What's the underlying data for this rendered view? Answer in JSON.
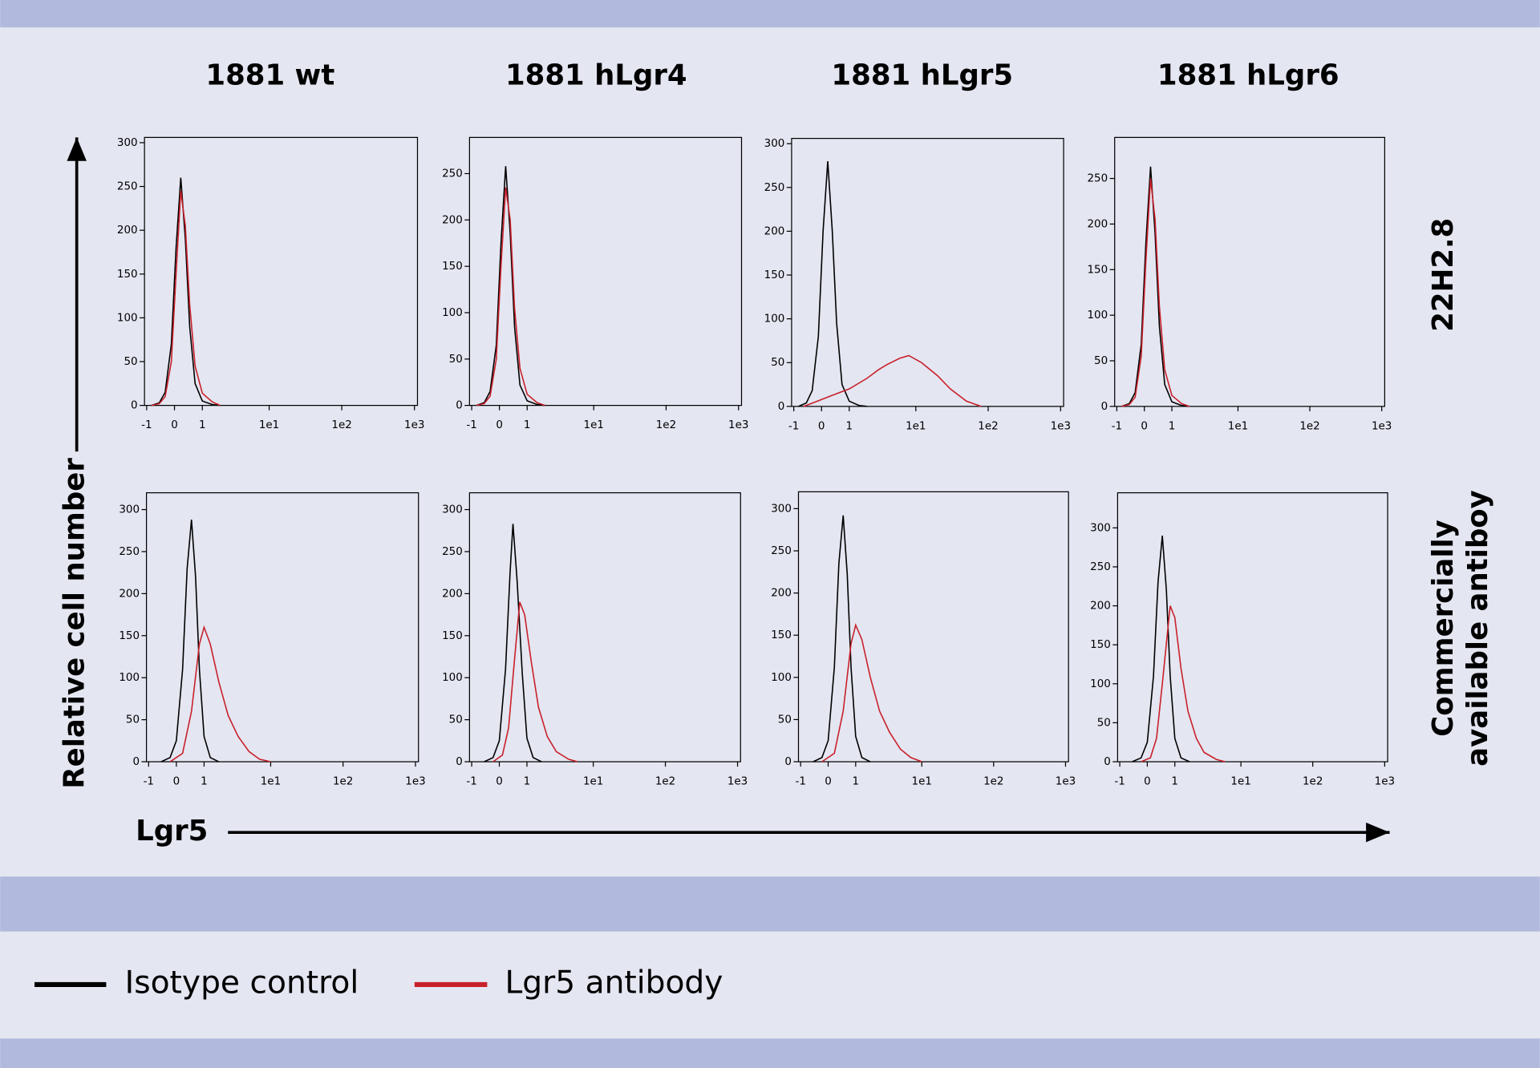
{
  "column_titles": [
    "1881 wt",
    "1881 hLgr4",
    "1881 hLgr5",
    "1881 hLgr6"
  ],
  "row_labels": [
    [
      "22H2.8"
    ],
    [
      "Commercially",
      "available antiboy"
    ]
  ],
  "y_axis_label": "Relative cell number",
  "x_axis_label": "Lgr5",
  "chart_data": [
    {
      "type": "histogram-line",
      "xscale": "asinh",
      "xlim": [
        -1.1,
        1100
      ],
      "ylim": [
        0,
        306
      ],
      "yticks": [
        0,
        50,
        100,
        150,
        200,
        250,
        300
      ],
      "xticks": [
        -1,
        0,
        1,
        {
          "value": 10,
          "label": "1e1"
        },
        {
          "value": 100,
          "label": "1e2"
        },
        {
          "value": 1000,
          "label": "1e3"
        }
      ],
      "series": [
        {
          "name": "Isotype control",
          "color": "#000000",
          "x": [
            -0.8,
            -0.5,
            -0.3,
            -0.1,
            0.05,
            0.2,
            0.35,
            0.5,
            0.7,
            1,
            1.5,
            2
          ],
          "values": [
            0,
            3,
            15,
            70,
            180,
            260,
            190,
            90,
            25,
            5,
            1,
            0
          ]
        },
        {
          "name": "Lgr5 antibody",
          "color": "#c8202a",
          "x": [
            -0.8,
            -0.5,
            -0.3,
            -0.1,
            0.05,
            0.2,
            0.35,
            0.5,
            0.7,
            1,
            1.5,
            2
          ],
          "values": [
            0,
            2,
            10,
            50,
            150,
            245,
            205,
            115,
            45,
            14,
            4,
            0
          ]
        }
      ]
    },
    {
      "type": "histogram-line",
      "xscale": "asinh",
      "xlim": [
        -1.1,
        1100
      ],
      "ylim": [
        0,
        289
      ],
      "yticks": [
        0,
        50,
        100,
        150,
        200,
        250
      ],
      "xticks": [
        -1,
        0,
        1,
        {
          "value": 10,
          "label": "1e1"
        },
        {
          "value": 100,
          "label": "1e2"
        },
        {
          "value": 1000,
          "label": "1e3"
        }
      ],
      "series": [
        {
          "name": "Isotype control",
          "color": "#000000",
          "x": [
            -0.8,
            -0.5,
            -0.3,
            -0.1,
            0.05,
            0.2,
            0.35,
            0.5,
            0.7,
            1,
            1.5,
            2
          ],
          "values": [
            0,
            3,
            15,
            65,
            175,
            258,
            185,
            85,
            22,
            5,
            1,
            0
          ]
        },
        {
          "name": "Lgr5 antibody",
          "color": "#c8202a",
          "x": [
            -0.8,
            -0.5,
            -0.3,
            -0.1,
            0.05,
            0.2,
            0.35,
            0.5,
            0.7,
            1,
            1.5,
            2
          ],
          "values": [
            0,
            2,
            10,
            50,
            150,
            235,
            200,
            105,
            40,
            12,
            3,
            0
          ]
        }
      ]
    },
    {
      "type": "histogram-line",
      "xscale": "asinh",
      "xlim": [
        -1.1,
        1100
      ],
      "ylim": [
        0,
        306
      ],
      "yticks": [
        0,
        50,
        100,
        150,
        200,
        250,
        300
      ],
      "xticks": [
        -1,
        0,
        1,
        {
          "value": 10,
          "label": "1e1"
        },
        {
          "value": 100,
          "label": "1e2"
        },
        {
          "value": 1000,
          "label": "1e3"
        }
      ],
      "series": [
        {
          "name": "Isotype control",
          "color": "#000000",
          "x": [
            -0.8,
            -0.5,
            -0.3,
            -0.1,
            0.05,
            0.2,
            0.35,
            0.5,
            0.7,
            1,
            1.5,
            2
          ],
          "values": [
            0,
            4,
            18,
            80,
            200,
            280,
            200,
            95,
            25,
            6,
            1,
            0
          ]
        },
        {
          "name": "Lgr5 antibody",
          "color": "#c8202a",
          "x": [
            -0.6,
            -0.2,
            0.3,
            1,
            2,
            3,
            4,
            6,
            8,
            12,
            20,
            30,
            50,
            80
          ],
          "values": [
            0,
            5,
            12,
            20,
            32,
            42,
            48,
            55,
            58,
            50,
            35,
            20,
            6,
            0
          ]
        }
      ]
    },
    {
      "type": "histogram-line",
      "xscale": "asinh",
      "xlim": [
        -1.1,
        1100
      ],
      "ylim": [
        0,
        295
      ],
      "yticks": [
        0,
        50,
        100,
        150,
        200,
        250
      ],
      "xticks": [
        -1,
        0,
        1,
        {
          "value": 10,
          "label": "1e1"
        },
        {
          "value": 100,
          "label": "1e2"
        },
        {
          "value": 1000,
          "label": "1e3"
        }
      ],
      "series": [
        {
          "name": "Isotype control",
          "color": "#000000",
          "x": [
            -0.8,
            -0.5,
            -0.3,
            -0.1,
            0.05,
            0.2,
            0.35,
            0.5,
            0.7,
            1,
            1.5,
            2
          ],
          "values": [
            0,
            3,
            15,
            68,
            180,
            263,
            190,
            88,
            24,
            5,
            1,
            0
          ]
        },
        {
          "name": "Lgr5 antibody",
          "color": "#c8202a",
          "x": [
            -0.8,
            -0.5,
            -0.3,
            -0.1,
            0.05,
            0.2,
            0.35,
            0.5,
            0.7,
            1,
            1.5,
            2
          ],
          "values": [
            0,
            2,
            10,
            55,
            160,
            250,
            205,
            110,
            40,
            12,
            3,
            0
          ]
        }
      ]
    },
    {
      "type": "histogram-line",
      "xscale": "asinh",
      "xlim": [
        -1.1,
        1100
      ],
      "ylim": [
        0,
        320
      ],
      "yticks": [
        0,
        50,
        100,
        150,
        200,
        250,
        300
      ],
      "xticks": [
        -1,
        0,
        1,
        {
          "value": 10,
          "label": "1e1"
        },
        {
          "value": 100,
          "label": "1e2"
        },
        {
          "value": 1000,
          "label": "1e3"
        }
      ],
      "series": [
        {
          "name": "Isotype control",
          "color": "#000000",
          "x": [
            -0.5,
            -0.2,
            0,
            0.2,
            0.35,
            0.5,
            0.65,
            0.8,
            1,
            1.3,
            1.8
          ],
          "values": [
            0,
            5,
            25,
            110,
            230,
            288,
            220,
            110,
            30,
            5,
            0
          ]
        },
        {
          "name": "Lgr5 antibody",
          "color": "#c8202a",
          "x": [
            -0.2,
            0.2,
            0.5,
            0.8,
            1,
            1.3,
            1.8,
            2.5,
            3.5,
            5,
            7,
            10
          ],
          "values": [
            0,
            10,
            60,
            140,
            160,
            140,
            95,
            55,
            30,
            12,
            3,
            0
          ]
        }
      ]
    },
    {
      "type": "histogram-line",
      "xscale": "asinh",
      "xlim": [
        -1.1,
        1100
      ],
      "ylim": [
        0,
        320
      ],
      "yticks": [
        0,
        50,
        100,
        150,
        200,
        250,
        300
      ],
      "xticks": [
        -1,
        0,
        1,
        {
          "value": 10,
          "label": "1e1"
        },
        {
          "value": 100,
          "label": "1e2"
        },
        {
          "value": 1000,
          "label": "1e3"
        }
      ],
      "series": [
        {
          "name": "Isotype control",
          "color": "#000000",
          "x": [
            -0.5,
            -0.2,
            0,
            0.2,
            0.35,
            0.45,
            0.6,
            0.8,
            1,
            1.3,
            1.8
          ],
          "values": [
            0,
            5,
            25,
            110,
            225,
            283,
            215,
            105,
            28,
            5,
            0
          ]
        },
        {
          "name": "Lgr5 antibody",
          "color": "#c8202a",
          "x": [
            -0.2,
            0.1,
            0.3,
            0.5,
            0.7,
            0.9,
            1.2,
            1.6,
            2.2,
            3,
            4.5,
            6
          ],
          "values": [
            0,
            8,
            40,
            120,
            190,
            175,
            120,
            65,
            30,
            12,
            3,
            0
          ]
        }
      ]
    },
    {
      "type": "histogram-line",
      "xscale": "asinh",
      "xlim": [
        -1.1,
        1100
      ],
      "ylim": [
        0,
        320
      ],
      "yticks": [
        0,
        50,
        100,
        150,
        200,
        250,
        300
      ],
      "xticks": [
        -1,
        0,
        1,
        {
          "value": 10,
          "label": "1e1"
        },
        {
          "value": 100,
          "label": "1e2"
        },
        {
          "value": 1000,
          "label": "1e3"
        }
      ],
      "series": [
        {
          "name": "Isotype control",
          "color": "#000000",
          "x": [
            -0.5,
            -0.2,
            0,
            0.2,
            0.35,
            0.5,
            0.65,
            0.8,
            1,
            1.3,
            1.8
          ],
          "values": [
            0,
            5,
            25,
            112,
            235,
            292,
            222,
            112,
            30,
            5,
            0
          ]
        },
        {
          "name": "Lgr5 antibody",
          "color": "#c8202a",
          "x": [
            -0.2,
            0.2,
            0.5,
            0.8,
            1,
            1.3,
            1.8,
            2.5,
            3.5,
            5,
            7,
            10
          ],
          "values": [
            0,
            10,
            60,
            140,
            162,
            145,
            100,
            60,
            35,
            15,
            5,
            0
          ]
        }
      ]
    },
    {
      "type": "histogram-line",
      "xscale": "asinh",
      "xlim": [
        -1.1,
        1100
      ],
      "ylim": [
        0,
        345
      ],
      "yticks": [
        0,
        50,
        100,
        150,
        200,
        250,
        300
      ],
      "xticks": [
        -1,
        0,
        1,
        {
          "value": 10,
          "label": "1e1"
        },
        {
          "value": 100,
          "label": "1e2"
        },
        {
          "value": 1000,
          "label": "1e3"
        }
      ],
      "series": [
        {
          "name": "Isotype control",
          "color": "#000000",
          "x": [
            -0.5,
            -0.2,
            0,
            0.2,
            0.35,
            0.5,
            0.65,
            0.8,
            1,
            1.3,
            1.8
          ],
          "values": [
            0,
            5,
            25,
            110,
            230,
            290,
            220,
            110,
            30,
            5,
            0
          ]
        },
        {
          "name": "Lgr5 antibody",
          "color": "#c8202a",
          "x": [
            -0.2,
            0.1,
            0.3,
            0.5,
            0.8,
            1,
            1.3,
            1.7,
            2.3,
            3,
            4.5,
            6
          ],
          "values": [
            0,
            5,
            30,
            100,
            200,
            185,
            120,
            65,
            30,
            12,
            3,
            0
          ]
        }
      ]
    }
  ]
}
